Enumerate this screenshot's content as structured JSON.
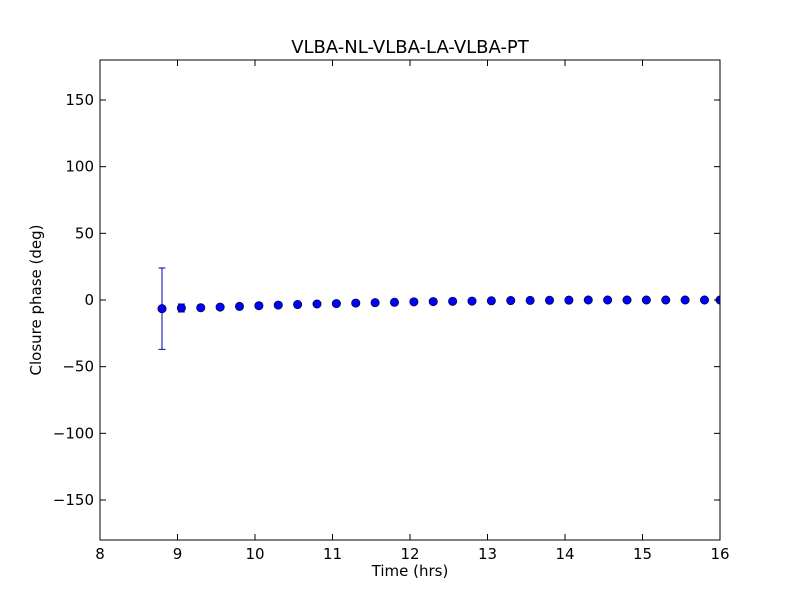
{
  "chart_data": {
    "type": "scatter",
    "title": "VLBA-NL-VLBA-LA-VLBA-PT",
    "xlabel": "Time (hrs)",
    "ylabel": "Closure phase (deg)",
    "xlim": [
      8,
      16
    ],
    "ylim": [
      -180,
      180
    ],
    "xticks": [
      8,
      9,
      10,
      11,
      12,
      13,
      14,
      15,
      16
    ],
    "xtick_labels": [
      "8",
      "9",
      "10",
      "11",
      "12",
      "13",
      "14",
      "15",
      "16"
    ],
    "yticks": [
      150,
      100,
      50,
      0,
      -50,
      -100,
      -150
    ],
    "ytick_labels": [
      "150",
      "100",
      "50",
      "0",
      "−50",
      "−100",
      "−150"
    ],
    "grid": false,
    "legend": "none",
    "series": [
      {
        "color": "#0000ff",
        "error_color": "#0000aa",
        "marker": "circle",
        "points": [
          {
            "x": 8.8,
            "y": -6.5,
            "err": 30.5
          },
          {
            "x": 9.05,
            "y": -6.0,
            "err": 3.0
          },
          {
            "x": 9.3,
            "y": -5.8,
            "err": 1.5
          },
          {
            "x": 9.55,
            "y": -5.3,
            "err": 1.2
          },
          {
            "x": 9.8,
            "y": -4.8,
            "err": 1.0
          },
          {
            "x": 10.05,
            "y": -4.3,
            "err": 1.0
          },
          {
            "x": 10.3,
            "y": -3.8,
            "err": 0.8
          },
          {
            "x": 10.55,
            "y": -3.4,
            "err": 0.8
          },
          {
            "x": 10.8,
            "y": -3.0,
            "err": 0.7
          },
          {
            "x": 11.05,
            "y": -2.7,
            "err": 0.7
          },
          {
            "x": 11.3,
            "y": -2.3,
            "err": 0.6
          },
          {
            "x": 11.55,
            "y": -2.0,
            "err": 0.6
          },
          {
            "x": 11.8,
            "y": -1.7,
            "err": 0.6
          },
          {
            "x": 12.05,
            "y": -1.4,
            "err": 0.5
          },
          {
            "x": 12.3,
            "y": -1.2,
            "err": 0.5
          },
          {
            "x": 12.55,
            "y": -1.0,
            "err": 0.5
          },
          {
            "x": 12.8,
            "y": -0.8,
            "err": 0.5
          },
          {
            "x": 13.05,
            "y": -0.6,
            "err": 0.5
          },
          {
            "x": 13.3,
            "y": -0.4,
            "err": 0.5
          },
          {
            "x": 13.55,
            "y": -0.3,
            "err": 0.5
          },
          {
            "x": 13.8,
            "y": -0.2,
            "err": 0.5
          },
          {
            "x": 14.05,
            "y": -0.1,
            "err": 0.5
          },
          {
            "x": 14.3,
            "y": 0.0,
            "err": 0.5
          },
          {
            "x": 14.55,
            "y": 0.0,
            "err": 0.5
          },
          {
            "x": 14.8,
            "y": 0.0,
            "err": 0.5
          },
          {
            "x": 15.05,
            "y": 0.0,
            "err": 0.5
          },
          {
            "x": 15.3,
            "y": 0.0,
            "err": 0.5
          },
          {
            "x": 15.55,
            "y": 0.0,
            "err": 0.5
          },
          {
            "x": 15.8,
            "y": 0.0,
            "err": 0.5
          },
          {
            "x": 16.0,
            "y": 0.0,
            "err": 0.5
          }
        ]
      }
    ]
  }
}
